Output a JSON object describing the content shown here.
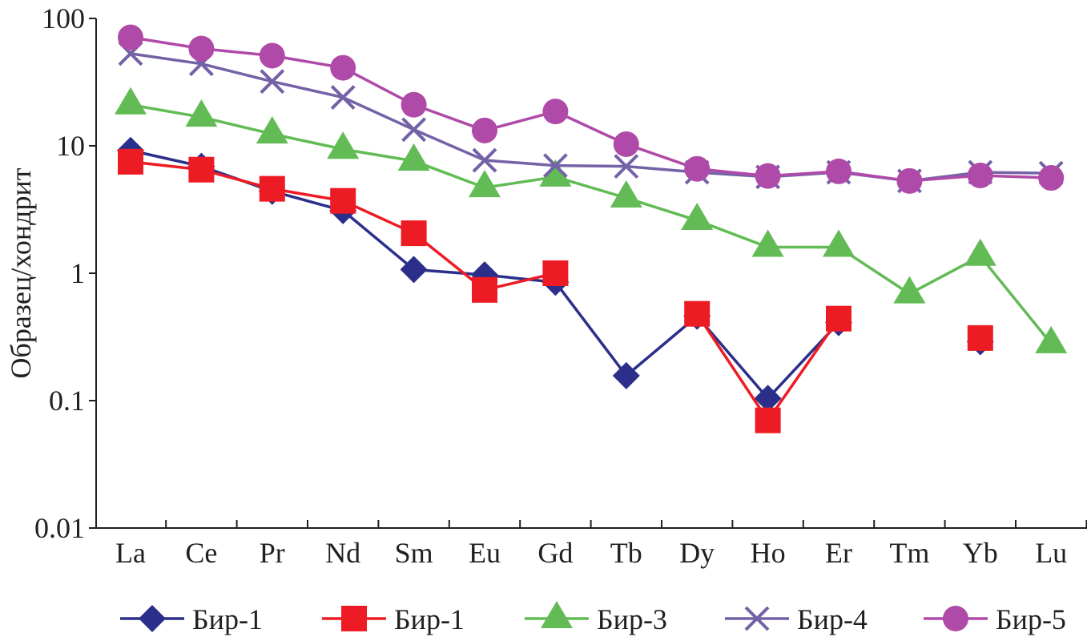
{
  "chart_data": {
    "type": "line",
    "title": "",
    "xlabel": "",
    "ylabel": "Образец/хондрит",
    "yscale": "log",
    "ylim": [
      0.01,
      100
    ],
    "yticks": [
      0.01,
      0.1,
      1,
      10,
      100
    ],
    "ytick_labels": [
      "0.01",
      "0.1",
      "1",
      "10",
      "100"
    ],
    "grid": false,
    "legend_position": "bottom",
    "categories": [
      "La",
      "Ce",
      "Pr",
      "Nd",
      "Sm",
      "Eu",
      "Gd",
      "Tb",
      "Dy",
      "Ho",
      "Er",
      "Tm",
      "Yb",
      "Lu"
    ],
    "series": [
      {
        "name": "Бир-1",
        "marker": "diamond",
        "color": "#2b2f8a",
        "values": [
          9.2,
          6.9,
          4.4,
          3.1,
          1.07,
          0.97,
          0.85,
          0.157,
          0.46,
          0.104,
          0.41,
          null,
          0.29,
          null
        ]
      },
      {
        "name": "Бир-1",
        "marker": "square",
        "color": "#ed1c24",
        "values": [
          7.5,
          6.5,
          4.6,
          3.7,
          2.06,
          0.74,
          1.0,
          null,
          0.48,
          0.07,
          0.44,
          null,
          0.31,
          null
        ]
      },
      {
        "name": "Бир-3",
        "marker": "triangle",
        "color": "#62bb55",
        "values": [
          21,
          16.8,
          12.4,
          9.4,
          7.6,
          4.7,
          5.7,
          3.9,
          2.6,
          1.6,
          1.6,
          0.69,
          1.36,
          0.28
        ]
      },
      {
        "name": "Бир-4",
        "marker": "x",
        "color": "#7462a6",
        "values": [
          53,
          44,
          32,
          24,
          13.4,
          7.7,
          7.0,
          6.9,
          6.2,
          5.7,
          6.2,
          5.3,
          6.2,
          6.1
        ]
      },
      {
        "name": "Бир-5",
        "marker": "circle",
        "color": "#b04aa8",
        "values": [
          71,
          58,
          51,
          41,
          21,
          13.2,
          18.6,
          10.3,
          6.6,
          5.8,
          6.3,
          5.3,
          5.85,
          5.6
        ]
      }
    ]
  }
}
